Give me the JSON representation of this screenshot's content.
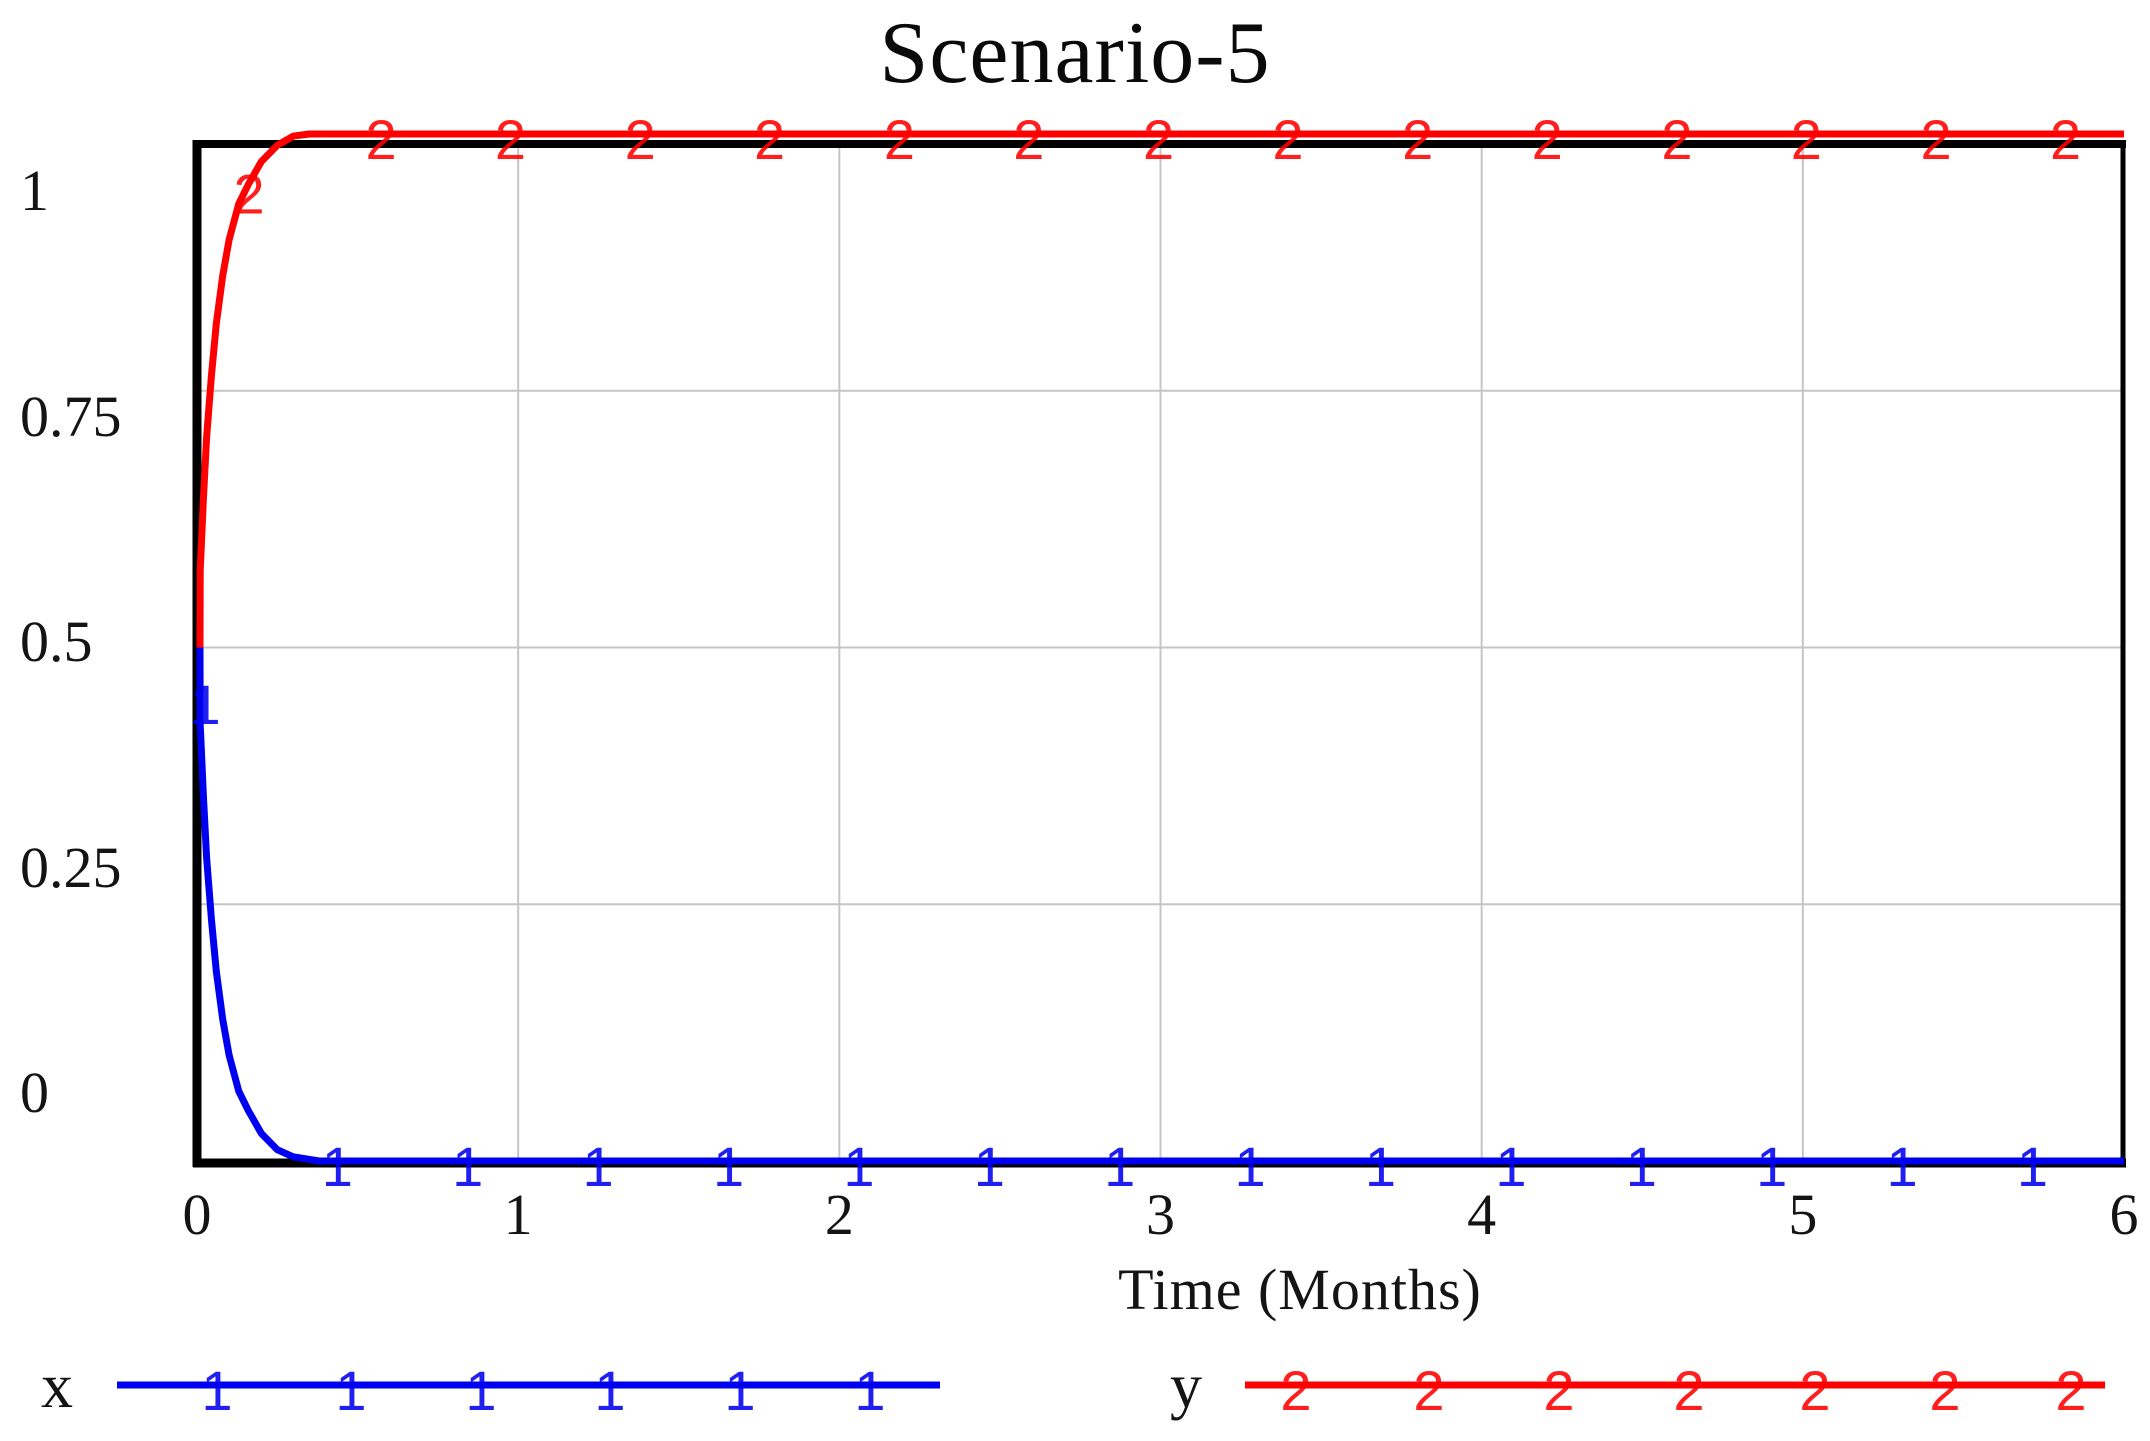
{
  "title": "Scenario-5",
  "x_axis": {
    "label": "Time (Months)",
    "ticks": [
      "0",
      "1",
      "2",
      "3",
      "4",
      "5",
      "6"
    ]
  },
  "y_axis": {
    "ticks": [
      "1",
      "0.75",
      "0.5",
      "0.25",
      "0"
    ]
  },
  "legend": [
    {
      "label": "x",
      "marker": "1",
      "color": "#0000f0"
    },
    {
      "label": "y",
      "marker": "2",
      "color": "#ff0000"
    }
  ],
  "colors": {
    "grid": "#c5c5c5",
    "frame": "#000000",
    "series_x": "#0000f0",
    "series_y": "#ff0000"
  },
  "chart_data": {
    "type": "line",
    "title": "Scenario-5",
    "xlabel": "Time (Months)",
    "ylabel": "",
    "xlim": [
      0,
      6
    ],
    "ylim": [
      0,
      1
    ],
    "x_ticks": [
      0,
      1,
      2,
      3,
      4,
      5,
      6
    ],
    "y_ticks": [
      0,
      0.25,
      0.5,
      0.75,
      1
    ],
    "grid": true,
    "legend_position": "bottom",
    "marker_interval_months": 0.4,
    "series": [
      {
        "name": "x",
        "marker": "1",
        "color": "#0000f0",
        "points": [
          [
            0,
            0.5
          ],
          [
            0.01,
            0.425
          ],
          [
            0.02,
            0.355
          ],
          [
            0.03,
            0.295
          ],
          [
            0.045,
            0.235
          ],
          [
            0.06,
            0.185
          ],
          [
            0.08,
            0.138
          ],
          [
            0.1,
            0.103
          ],
          [
            0.13,
            0.068
          ],
          [
            0.16,
            0.049
          ],
          [
            0.2,
            0.027
          ],
          [
            0.25,
            0.011
          ],
          [
            0.3,
            0.004
          ],
          [
            0.38,
            0.0
          ],
          [
            6,
            0.0
          ]
        ],
        "marker_points": [
          [
            0.025,
            0.45
          ],
          [
            0.437,
            0
          ],
          [
            0.843,
            0
          ],
          [
            1.249,
            0
          ],
          [
            1.655,
            0
          ],
          [
            2.061,
            0
          ],
          [
            2.467,
            0
          ],
          [
            2.873,
            0
          ],
          [
            3.279,
            0
          ],
          [
            3.685,
            0
          ],
          [
            4.091,
            0
          ],
          [
            4.497,
            0
          ],
          [
            4.903,
            0
          ],
          [
            5.309,
            0
          ],
          [
            5.715,
            0
          ]
        ]
      },
      {
        "name": "y",
        "marker": "2",
        "color": "#ff0000",
        "points": [
          [
            0,
            0.5
          ],
          [
            0.01,
            0.575
          ],
          [
            0.02,
            0.645
          ],
          [
            0.03,
            0.705
          ],
          [
            0.045,
            0.765
          ],
          [
            0.06,
            0.815
          ],
          [
            0.08,
            0.862
          ],
          [
            0.1,
            0.897
          ],
          [
            0.13,
            0.932
          ],
          [
            0.16,
            0.951
          ],
          [
            0.2,
            0.973
          ],
          [
            0.25,
            0.989
          ],
          [
            0.3,
            0.998
          ],
          [
            0.35,
            1.0
          ],
          [
            6,
            1.0
          ]
        ],
        "marker_points": [
          [
            0.162,
            0.947
          ],
          [
            0.573,
            1
          ],
          [
            0.976,
            1
          ],
          [
            1.38,
            1
          ],
          [
            1.783,
            1
          ],
          [
            2.187,
            1
          ],
          [
            2.59,
            1
          ],
          [
            2.994,
            1
          ],
          [
            3.397,
            1
          ],
          [
            3.801,
            1
          ],
          [
            4.204,
            1
          ],
          [
            4.608,
            1
          ],
          [
            5.011,
            1
          ],
          [
            5.415,
            1
          ],
          [
            5.818,
            1
          ]
        ]
      }
    ]
  }
}
